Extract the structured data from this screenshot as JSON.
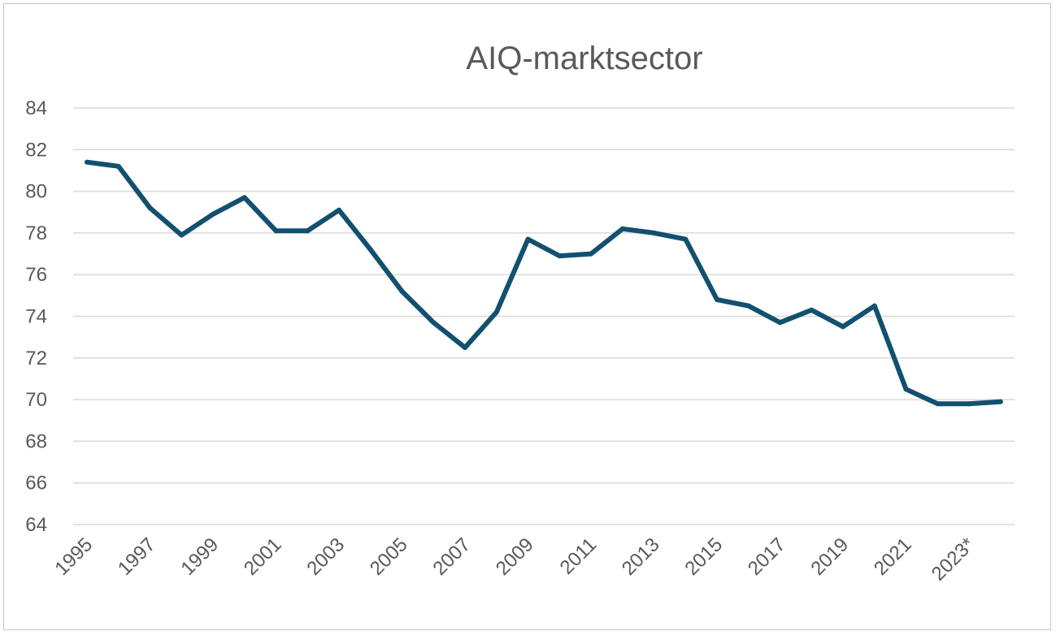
{
  "chart_data": {
    "type": "line",
    "title": "AIQ-marktsector",
    "xlabel": "",
    "ylabel": "",
    "ylim": [
      64,
      84
    ],
    "yticks": [
      64,
      66,
      68,
      70,
      72,
      74,
      76,
      78,
      80,
      82,
      84
    ],
    "grid": true,
    "legend": "none",
    "x": [
      "1995",
      "1996",
      "1997",
      "1998",
      "1999",
      "2000",
      "2001",
      "2002",
      "2003",
      "2004",
      "2005",
      "2006",
      "2007",
      "2008",
      "2009",
      "2010",
      "2011",
      "2012",
      "2013",
      "2014",
      "2015",
      "2016",
      "2017",
      "2018",
      "2019",
      "2020",
      "2021",
      "2022",
      "2023*",
      "2024"
    ],
    "xtick_labels": [
      "1995",
      "1997",
      "1999",
      "2001",
      "2003",
      "2005",
      "2007",
      "2009",
      "2011",
      "2013",
      "2015",
      "2017",
      "2019",
      "2021",
      "2023*"
    ],
    "series": [
      {
        "color": "#12506f",
        "values": [
          81.4,
          81.2,
          79.2,
          77.9,
          78.9,
          79.7,
          78.1,
          78.1,
          79.1,
          77.2,
          75.2,
          73.7,
          72.5,
          74.2,
          77.7,
          76.9,
          77.0,
          78.2,
          78.0,
          77.7,
          74.8,
          74.5,
          73.7,
          74.3,
          73.5,
          74.5,
          70.5,
          69.8,
          69.8,
          69.9
        ]
      }
    ]
  }
}
